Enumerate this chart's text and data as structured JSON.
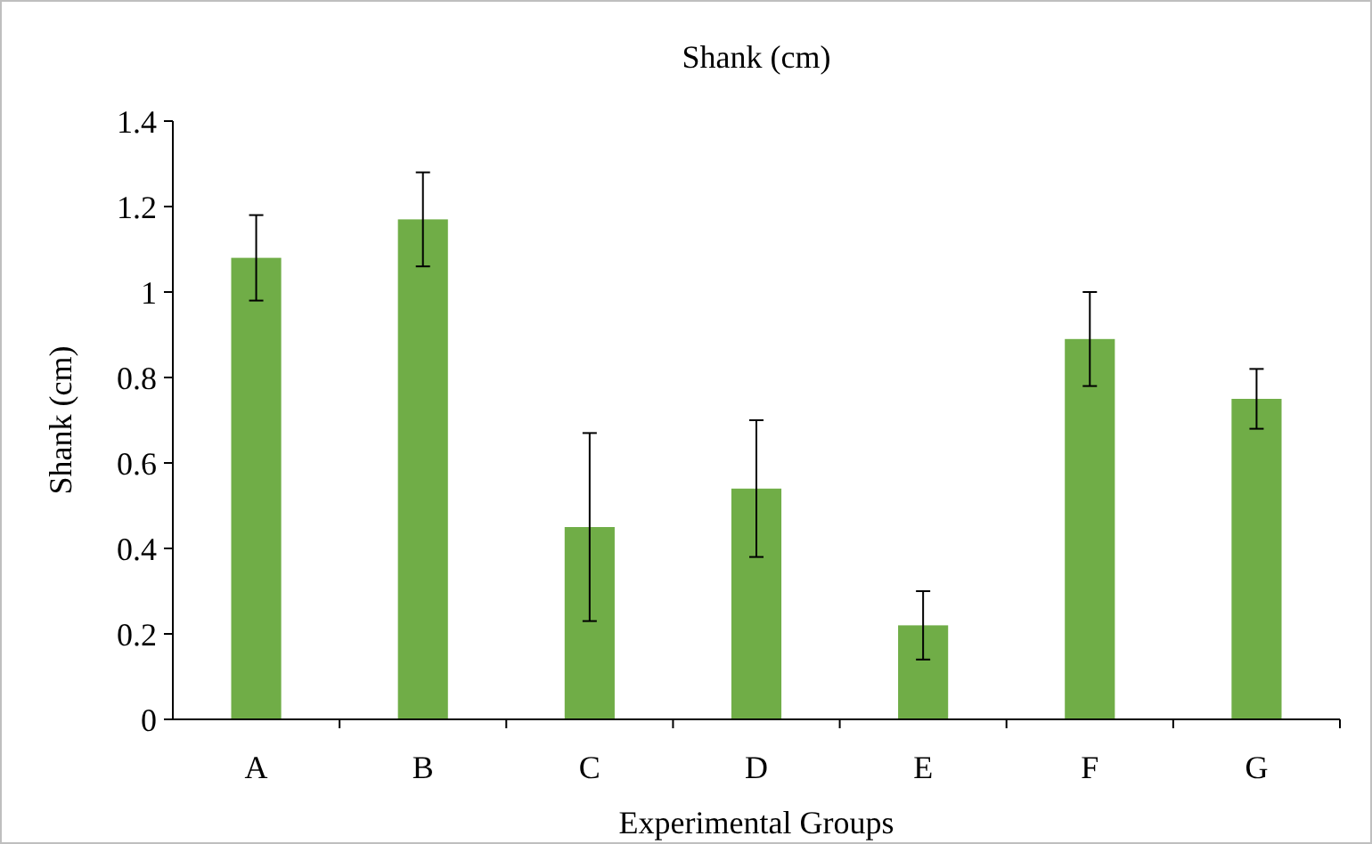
{
  "chart_data": {
    "type": "bar",
    "title": "Shank (cm)",
    "xlabel": "Experimental Groups",
    "ylabel": "Shank (cm)",
    "categories": [
      "A",
      "B",
      "C",
      "D",
      "E",
      "F",
      "G"
    ],
    "values": [
      1.08,
      1.17,
      0.45,
      0.54,
      0.22,
      0.89,
      0.75
    ],
    "errors": [
      0.1,
      0.11,
      0.22,
      0.16,
      0.08,
      0.11,
      0.07
    ],
    "color": "#70ad47",
    "ylim": [
      0,
      1.4
    ],
    "yticks": [
      0,
      0.2,
      0.4,
      0.6,
      0.8,
      1,
      1.2,
      1.4
    ]
  }
}
